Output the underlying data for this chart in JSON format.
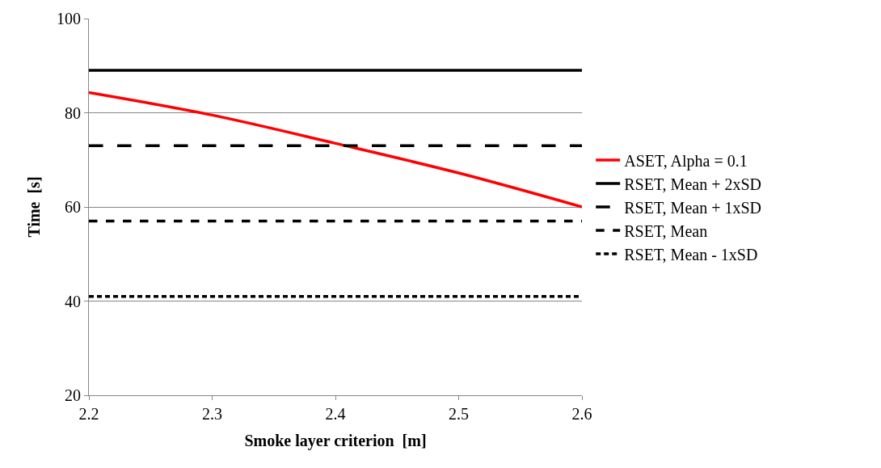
{
  "chart_data": {
    "type": "line",
    "xlabel": "Smoke layer criterion  [m]",
    "ylabel": "Time  [s]",
    "x": [
      2.2,
      2.3,
      2.4,
      2.5,
      2.6
    ],
    "series": [
      {
        "name": "ASET, Alpha = 0.1",
        "color": "#ff0000",
        "values": [
          84.3,
          79.5,
          73.5,
          67.2,
          60
        ],
        "line_style": "solid"
      },
      {
        "name": "RSET, Mean + 2xSD",
        "color": "#000000",
        "values": [
          89,
          89,
          89,
          89,
          89
        ],
        "line_style": "solid"
      },
      {
        "name": "RSET, Mean + 1xSD",
        "color": "#000000",
        "values": [
          73,
          73,
          73,
          73,
          73
        ],
        "line_style": "dashed"
      },
      {
        "name": "RSET, Mean",
        "color": "#000000",
        "values": [
          57,
          57,
          57,
          57,
          57
        ],
        "line_style": "dashed"
      },
      {
        "name": "RSET, Mean - 1xSD",
        "color": "#000000",
        "values": [
          41,
          41,
          41,
          41,
          41
        ],
        "line_style": "dotted"
      }
    ],
    "xlim": [
      2.2,
      2.6
    ],
    "xticks": [
      2.2,
      2.3,
      2.4,
      2.5,
      2.6
    ],
    "ylim": [
      20,
      100
    ],
    "yticks": [
      20,
      40,
      60,
      80,
      100
    ],
    "grid": "y",
    "legend": "right",
    "marker": "none"
  }
}
